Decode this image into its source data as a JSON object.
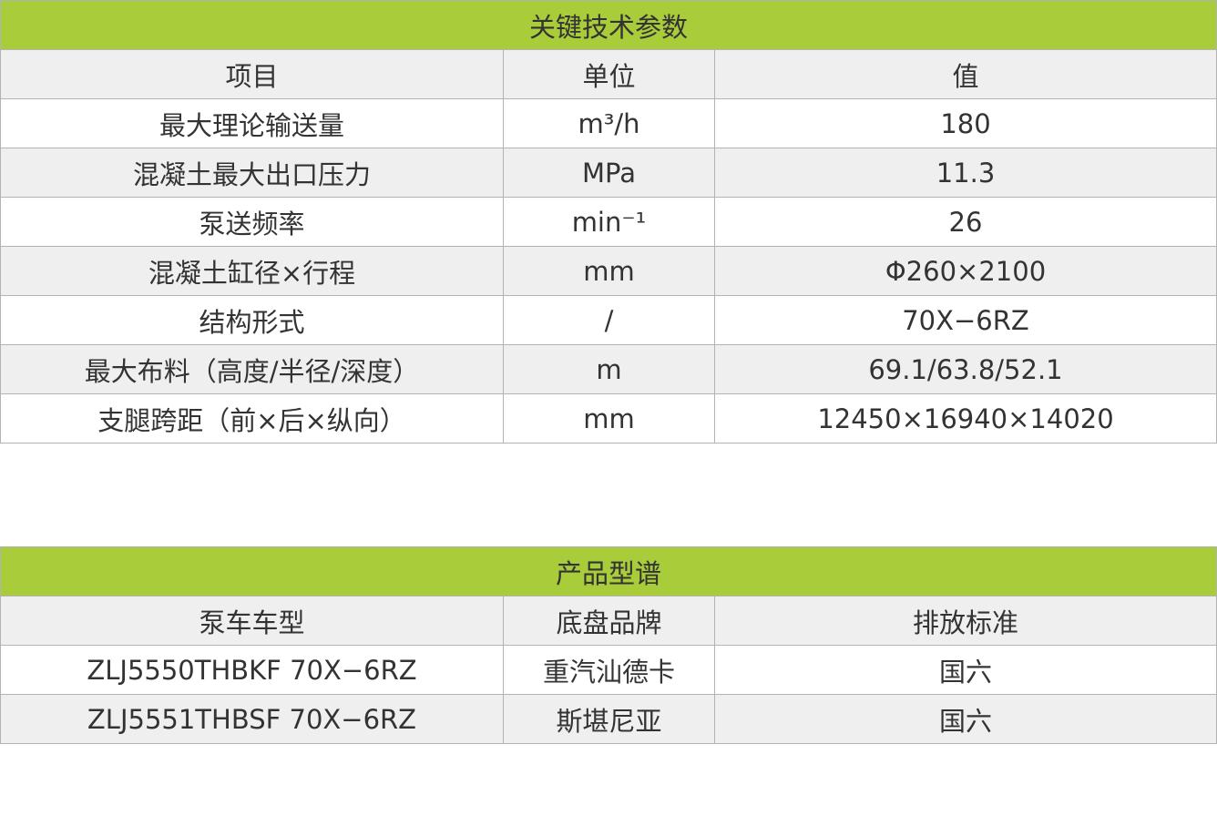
{
  "specs": {
    "title": "关键技术参数",
    "headers": [
      "项目",
      "单位",
      "值"
    ],
    "rows": [
      {
        "item": "最大理论输送量",
        "unit": "m³/h",
        "value": "180"
      },
      {
        "item": "混凝土最大出口压力",
        "unit": "MPa",
        "value": "11.3"
      },
      {
        "item": "泵送频率",
        "unit": "min⁻¹",
        "value": "26"
      },
      {
        "item": "混凝土缸径×行程",
        "unit": "mm",
        "value": "Φ260×2100"
      },
      {
        "item": "结构形式",
        "unit": "/",
        "value": "70X−6RZ"
      },
      {
        "item": "最大布料（高度/半径/深度）",
        "unit": "m",
        "value": "69.1/63.8/52.1"
      },
      {
        "item": "支腿跨距（前×后×纵向）",
        "unit": "mm",
        "value": "12450×16940×14020"
      }
    ]
  },
  "models": {
    "title": "产品型谱",
    "headers": [
      "泵车车型",
      "底盘品牌",
      "排放标准"
    ],
    "rows": [
      {
        "model": "ZLJ5550THBKF 70X−6RZ",
        "chassis": "重汽汕德卡",
        "emission": "国六"
      },
      {
        "model": "ZLJ5551THBSF 70X−6RZ",
        "chassis": "斯堪尼亚",
        "emission": "国六"
      }
    ]
  },
  "colors": {
    "header_green": "#a8cc3a",
    "row_gray": "#efefef"
  }
}
